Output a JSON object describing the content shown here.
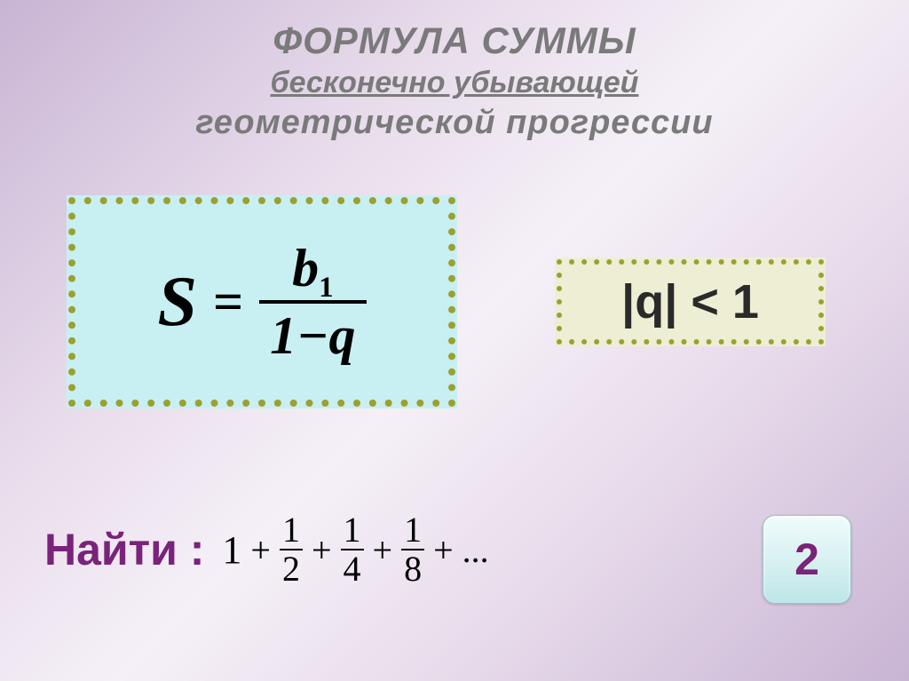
{
  "title": {
    "line1": "ФОРМУЛА СУММЫ",
    "line2": " бесконечно убывающей",
    "line3": "геометрической прогрессии",
    "color": "#7a7a7a",
    "fontsize_line1": 42,
    "fontsize_line2": 34,
    "fontsize_line3": 38
  },
  "formula": {
    "lhs": "S",
    "numerator_var": "b",
    "numerator_sub": "1",
    "denominator": "1−q",
    "box_bg": "#c8f0f2",
    "border_color": "#9ba030",
    "dot_radius": 4,
    "dot_spacing": 18,
    "text_color": "#000000",
    "fontsize": 72
  },
  "condition": {
    "text": "|q| < 1",
    "box_bg": "#eeeed4",
    "border_color": "#9ba030",
    "dot_radius": 3,
    "dot_spacing": 14,
    "text_color": "#2a2a2a",
    "fontsize": 54
  },
  "find": {
    "label": "Найти :",
    "label_color": "#7a237a",
    "label_fontsize": 50,
    "series": {
      "first_term": "1",
      "fractions": [
        {
          "num": "1",
          "den": "2"
        },
        {
          "num": "1",
          "den": "4"
        },
        {
          "num": "1",
          "den": "8"
        }
      ],
      "ellipsis": "...",
      "text_color": "#000000",
      "fontsize": 44
    }
  },
  "answer": {
    "value": "2",
    "color": "#7a237a",
    "bg_gradient_top": "#f0fbfb",
    "bg_gradient_bottom": "#bce5e7",
    "border_color": "#9ac5c7",
    "fontsize": 50
  },
  "background": {
    "gradient_outer": "#c8b4d4",
    "gradient_inner": "#f5f0f7"
  }
}
